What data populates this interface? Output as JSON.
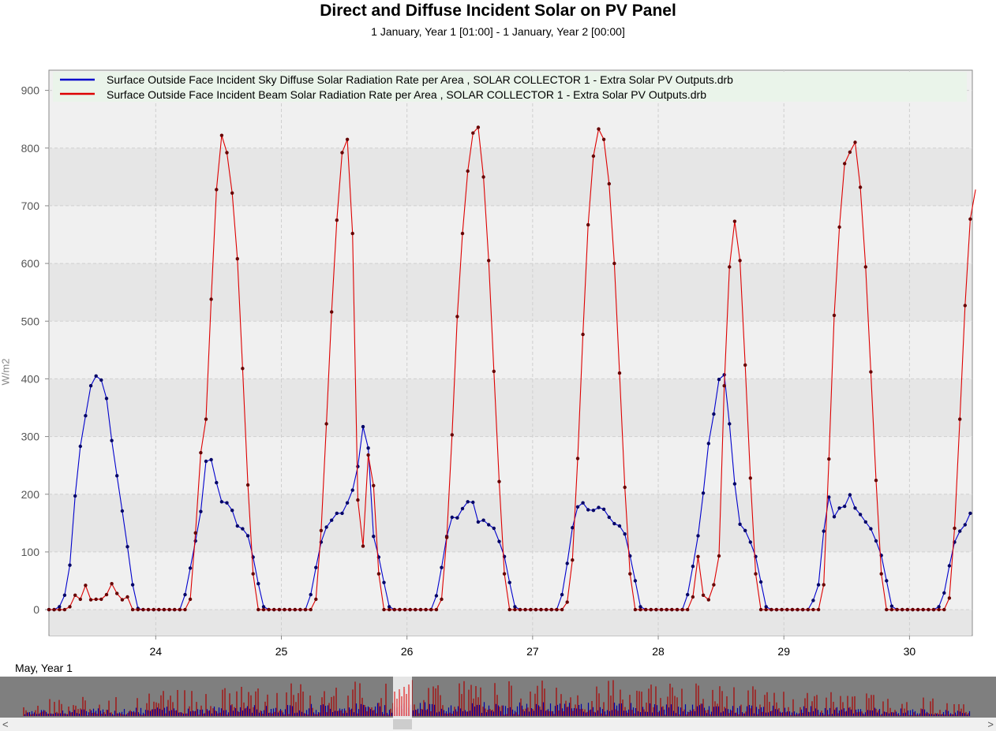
{
  "title": "Direct and Diffuse Incident Solar on PV Panel",
  "subtitle": "1 January, Year 1 [01:00] - 1 January, Year 2 [00:00]",
  "period_label": "May, Year 1",
  "scroll": {
    "left_arrow": "<",
    "right_arrow": ">"
  },
  "colors": {
    "diffuse": "#0000cc",
    "beam": "#dd0000",
    "legend_bg": "#eaf4ea",
    "band_a": "#e6e6e6",
    "band_b": "#f0f0f0"
  },
  "chart_data": {
    "type": "line",
    "ylabel": "W/m2",
    "xlabel": "",
    "ylim": [
      -45,
      935
    ],
    "xlim": [
      23.15,
      30.5
    ],
    "x_unit": "day of May, Year 1 (hourly)",
    "yticks": [
      0,
      100,
      200,
      300,
      400,
      500,
      600,
      700,
      800,
      900
    ],
    "xticks": [
      24,
      25,
      26,
      27,
      28,
      29,
      30
    ],
    "grid": true,
    "legend_position": "top",
    "x_start": 23.15,
    "x_step": 0.04167,
    "series": [
      {
        "name": "Surface Outside Face Incident Sky Diffuse Solar Radiation Rate per Area , SOLAR COLLECTOR 1 - Extra Solar PV Outputs.drb",
        "color": "#0000cc",
        "values": [
          0,
          0,
          5,
          25,
          77,
          197,
          283,
          336,
          388,
          405,
          398,
          366,
          293,
          232,
          171,
          109,
          43,
          2,
          0,
          0,
          0,
          0,
          0,
          0,
          0,
          0,
          26,
          72,
          119,
          170,
          257,
          260,
          220,
          187,
          185,
          172,
          145,
          140,
          128,
          91,
          45,
          5,
          0,
          0,
          0,
          0,
          0,
          0,
          0,
          0,
          26,
          73,
          117,
          143,
          155,
          167,
          167,
          185,
          207,
          248,
          317,
          280,
          127,
          91,
          47,
          5,
          0,
          0,
          0,
          0,
          0,
          0,
          0,
          0,
          24,
          73,
          127,
          160,
          159,
          175,
          187,
          186,
          152,
          155,
          147,
          141,
          118,
          92,
          47,
          5,
          0,
          0,
          0,
          0,
          0,
          0,
          0,
          0,
          26,
          80,
          142,
          178,
          185,
          173,
          172,
          177,
          174,
          160,
          149,
          145,
          131,
          93,
          50,
          5,
          0,
          0,
          0,
          0,
          0,
          0,
          0,
          0,
          26,
          75,
          128,
          202,
          288,
          339,
          399,
          407,
          322,
          218,
          148,
          137,
          117,
          92,
          48,
          5,
          0,
          0,
          0,
          0,
          0,
          0,
          0,
          0,
          16,
          43,
          136,
          195,
          161,
          176,
          179,
          199,
          176,
          165,
          152,
          140,
          119,
          94,
          50,
          6,
          0,
          0,
          0,
          0,
          0,
          0,
          0,
          0,
          5,
          29,
          76,
          117,
          136,
          147,
          167
        ]
      },
      {
        "name": "Surface Outside Face Incident Beam Solar Radiation Rate per Area , SOLAR COLLECTOR 1 - Extra Solar PV Outputs.drb",
        "color": "#dd0000",
        "values": [
          0,
          0,
          0,
          0,
          5,
          25,
          18,
          42,
          17,
          18,
          18,
          26,
          45,
          28,
          17,
          22,
          0,
          0,
          0,
          0,
          0,
          0,
          0,
          0,
          0,
          0,
          0,
          18,
          133,
          272,
          330,
          538,
          728,
          822,
          792,
          722,
          608,
          418,
          216,
          62,
          0,
          0,
          0,
          0,
          0,
          0,
          0,
          0,
          0,
          0,
          0,
          18,
          137,
          322,
          516,
          675,
          792,
          815,
          652,
          190,
          110,
          268,
          215,
          62,
          0,
          0,
          0,
          0,
          0,
          0,
          0,
          0,
          0,
          0,
          0,
          18,
          125,
          303,
          508,
          652,
          760,
          826,
          836,
          750,
          605,
          413,
          222,
          62,
          0,
          0,
          0,
          0,
          0,
          0,
          0,
          0,
          0,
          0,
          0,
          13,
          86,
          262,
          477,
          667,
          786,
          833,
          815,
          738,
          600,
          410,
          212,
          62,
          0,
          0,
          0,
          0,
          0,
          0,
          0,
          0,
          0,
          0,
          0,
          22,
          92,
          25,
          17,
          43,
          93,
          388,
          594,
          673,
          605,
          424,
          228,
          62,
          0,
          0,
          0,
          0,
          0,
          0,
          0,
          0,
          0,
          0,
          0,
          0,
          43,
          261,
          510,
          663,
          773,
          793,
          810,
          732,
          594,
          412,
          224,
          62,
          0,
          0,
          0,
          0,
          0,
          0,
          0,
          0,
          0,
          0,
          0,
          0,
          20,
          141,
          330,
          527,
          677,
          728
        ]
      }
    ]
  }
}
